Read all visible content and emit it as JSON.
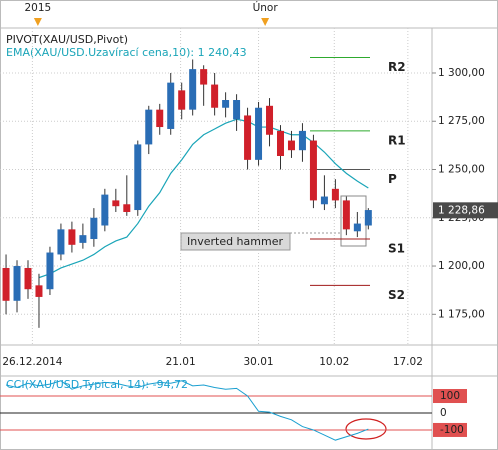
{
  "chart_data": [
    {
      "type": "candlestick",
      "title": "PIVOT(XAU/USD,Pivot)",
      "subtitle": "EMA(XAU/USD.Uzavírací cena,10): 1 240,43",
      "xlim": [
        -0.55,
        38.8
      ],
      "xticks": [
        {
          "value": 2.4,
          "label": "26.12.2014"
        },
        {
          "value": 15.9,
          "label": "21.01"
        },
        {
          "value": 23.0,
          "label": "30.01"
        },
        {
          "value": 29.9,
          "label": "10.02"
        },
        {
          "value": 36.6,
          "label": "17.02"
        }
      ],
      "top_ticks": [
        {
          "value": 2.9,
          "label": "2015"
        },
        {
          "value": 23.6,
          "label": "Únor"
        }
      ],
      "ylim": [
        1159.1,
        1323.3
      ],
      "yticks": [
        {
          "value": 1175,
          "label": "1 175,00"
        },
        {
          "value": 1200,
          "label": "1 200,00"
        },
        {
          "value": 1225,
          "label": "1 225,00"
        },
        {
          "value": 1250,
          "label": "1 250,00"
        },
        {
          "value": 1275,
          "label": "1 275,00"
        },
        {
          "value": 1300,
          "label": "1 300,00"
        }
      ],
      "grid": true,
      "up_color": "#2a6db5",
      "down_color": "#d0202a",
      "open": [
        1199,
        1182,
        1199,
        1190,
        1188,
        1206,
        1219,
        1212,
        1214,
        1221,
        1234,
        1232,
        1229,
        1263,
        1281,
        1271,
        1291,
        1281,
        1302,
        1294,
        1282,
        1276,
        1278,
        1255,
        1283,
        1270,
        1265,
        1260,
        1265,
        1232,
        1240,
        1234,
        1218,
        1221
      ],
      "high": [
        1206,
        1203,
        1203,
        1196,
        1210,
        1222,
        1223,
        1222,
        1230,
        1240,
        1240,
        1247,
        1265,
        1283,
        1284,
        1300,
        1295,
        1307,
        1304,
        1300,
        1290,
        1289,
        1282,
        1285,
        1287,
        1273,
        1270,
        1274,
        1268,
        1247,
        1245,
        1236,
        1228,
        1230
      ],
      "low": [
        1175,
        1176,
        1183,
        1168,
        1185,
        1203,
        1207,
        1209,
        1210,
        1218,
        1228,
        1226,
        1226,
        1258,
        1268,
        1268,
        1276,
        1278,
        1283,
        1278,
        1277,
        1270,
        1250,
        1252,
        1262,
        1250,
        1256,
        1254,
        1230,
        1229,
        1230,
        1216,
        1215,
        1219
      ],
      "close": [
        1182,
        1200,
        1188,
        1184,
        1207,
        1219,
        1211,
        1216,
        1225,
        1237,
        1231,
        1228,
        1263,
        1281,
        1272,
        1295,
        1281,
        1302,
        1294,
        1282,
        1286,
        1286,
        1255,
        1282,
        1268,
        1257,
        1260,
        1270,
        1234,
        1236,
        1234,
        1219,
        1222,
        1229
      ],
      "ema": {
        "color": "#1aa5b8",
        "values": [
          null,
          null,
          null,
          1194,
          1196,
          1199,
          1201,
          1203,
          1206,
          1210,
          1213,
          1215,
          1222,
          1231,
          1238,
          1248,
          1255,
          1263,
          1268,
          1271,
          1274,
          1276,
          1275,
          1272,
          1272,
          1270,
          1268,
          1268,
          1264,
          1259,
          1253,
          1248,
          1244,
          1240.43
        ]
      },
      "last_price": {
        "value": 1228.86,
        "label": "1 228,86"
      },
      "pivots": [
        {
          "label": "R2",
          "value": 1308,
          "color": "#2eaa2e"
        },
        {
          "label": "R1",
          "value": 1270,
          "color": "#2eaa2e"
        },
        {
          "label": "P",
          "value": 1250,
          "color": "#555555"
        },
        {
          "label": "S1",
          "value": 1214,
          "color": "#a01818"
        },
        {
          "label": "S2",
          "value": 1190,
          "color": "#a01818"
        }
      ],
      "annotation": "Inverted hammer"
    },
    {
      "type": "line",
      "title": "CCI(XAU/USD,Typical, 14): -94,72",
      "color": "#1a9fd0",
      "level_color": "#e05050",
      "xlim": [
        -0.55,
        38.8
      ],
      "ylim": [
        -218,
        212
      ],
      "yticks": [
        100,
        0,
        -100
      ],
      "values": [
        165,
        150,
        175,
        160,
        170,
        190,
        140,
        160,
        170,
        180,
        175,
        160,
        150,
        170,
        180,
        175,
        190,
        160,
        165,
        150,
        140,
        145,
        100,
        10,
        5,
        -20,
        -40,
        -80,
        -100,
        -130,
        -160,
        -140,
        -120,
        -94.72
      ]
    }
  ]
}
